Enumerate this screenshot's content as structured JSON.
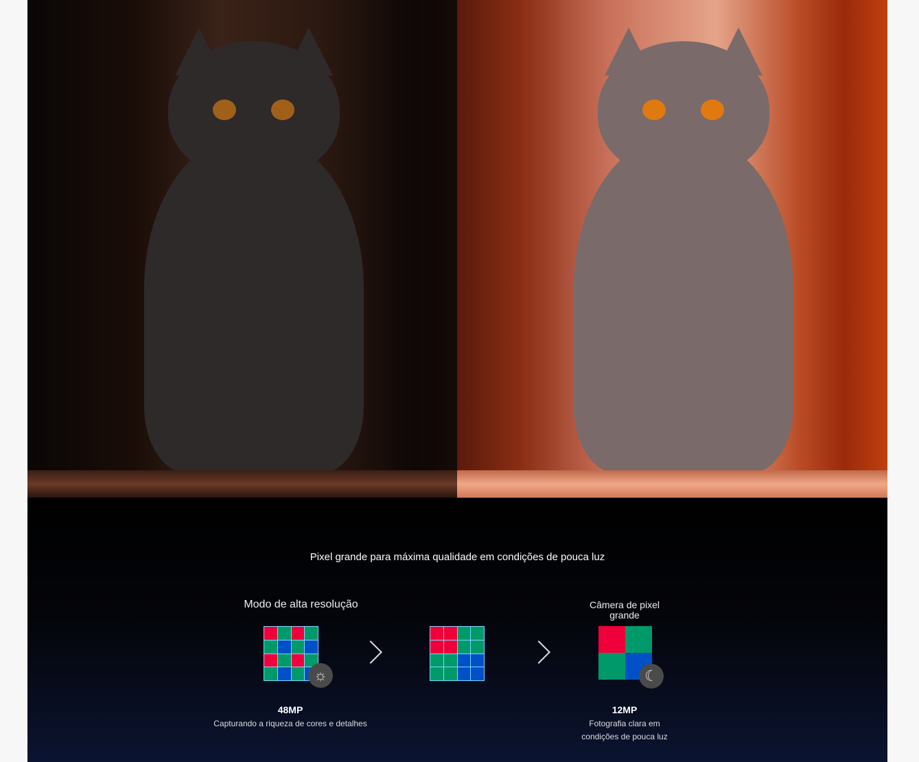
{
  "caption": "Pixel grande para máxima qualidade em condições de pouca luz",
  "left": {
    "title": "Modo de alta resolução",
    "megapixels": "48MP",
    "description": "Capturando a riqueza de cores e detalhes",
    "grid": [
      "r",
      "g",
      "r",
      "g",
      "g",
      "b",
      "g",
      "b",
      "r",
      "g",
      "r",
      "g",
      "g",
      "b",
      "g",
      "b"
    ],
    "badge_icon": "sun-icon"
  },
  "middle": {
    "grid": [
      "r",
      "r",
      "g",
      "g",
      "r",
      "r",
      "g",
      "g",
      "g",
      "g",
      "b",
      "b",
      "g",
      "g",
      "b",
      "b"
    ]
  },
  "right": {
    "title": "Câmera de pixel grande",
    "megapixels": "12MP",
    "description_line1": "Fotografia clara em",
    "description_line2": "condições de pouca luz",
    "grid": [
      "r",
      "g",
      "g",
      "b"
    ],
    "badge_icon": "moon-icon"
  },
  "colors": {
    "red": "#f0003a",
    "green": "#009a6a",
    "blue": "#0050c8"
  }
}
